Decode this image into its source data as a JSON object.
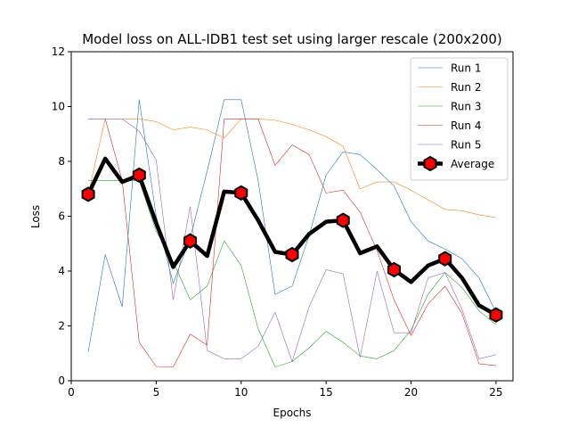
{
  "chart_data": {
    "type": "line",
    "title": "Model loss on ALL-IDB1 test set using larger rescale (200x200)",
    "xlabel": "Epochs",
    "ylabel": "Loss",
    "xlim": [
      0,
      26
    ],
    "ylim": [
      0,
      12
    ],
    "xticks": [
      0,
      5,
      10,
      15,
      20,
      25
    ],
    "yticks": [
      0,
      2,
      4,
      6,
      8,
      10,
      12
    ],
    "grid": false,
    "legend_position": "upper right",
    "x": [
      1,
      2,
      3,
      4,
      5,
      6,
      7,
      8,
      9,
      10,
      11,
      12,
      13,
      14,
      15,
      16,
      17,
      18,
      19,
      20,
      21,
      22,
      23,
      24,
      25
    ],
    "series": [
      {
        "name": "Run 1",
        "color": "#1f77b4",
        "values": [
          1.05,
          4.6,
          2.7,
          10.25,
          6.0,
          3.55,
          5.2,
          7.65,
          10.25,
          10.25,
          7.3,
          3.15,
          3.45,
          5.3,
          7.5,
          8.35,
          8.25,
          7.7,
          7.1,
          5.8,
          5.1,
          4.8,
          4.45,
          3.75,
          2.5
        ]
      },
      {
        "name": "Run 2",
        "color": "#ff7f0e",
        "values": [
          6.8,
          9.55,
          9.55,
          9.55,
          9.45,
          9.15,
          9.25,
          9.15,
          8.85,
          9.55,
          9.55,
          9.5,
          9.35,
          9.15,
          8.9,
          8.55,
          7.0,
          7.25,
          7.25,
          6.95,
          6.6,
          6.25,
          6.2,
          6.05,
          5.95
        ]
      },
      {
        "name": "Run 3",
        "color": "#2ca02c",
        "values": [
          7.3,
          7.3,
          7.3,
          7.3,
          5.45,
          4.35,
          2.95,
          3.45,
          5.1,
          4.2,
          1.9,
          0.5,
          0.7,
          1.2,
          1.8,
          1.4,
          0.9,
          0.8,
          1.1,
          1.85,
          3.15,
          3.95,
          3.4,
          2.55,
          2.05
        ]
      },
      {
        "name": "Run 4",
        "color": "#d62728",
        "values": [
          9.55,
          9.55,
          7.3,
          1.4,
          0.52,
          0.5,
          1.7,
          1.3,
          9.55,
          9.55,
          9.55,
          7.85,
          8.6,
          8.25,
          6.85,
          6.95,
          6.15,
          4.75,
          2.95,
          1.65,
          2.8,
          3.45,
          2.45,
          0.62,
          0.55
        ]
      },
      {
        "name": "Run 5",
        "color": "#9467bd",
        "values": [
          9.55,
          9.55,
          9.55,
          9.1,
          8.05,
          2.95,
          6.35,
          1.1,
          0.8,
          0.8,
          1.25,
          2.5,
          0.7,
          2.7,
          4.05,
          3.9,
          0.85,
          4.0,
          1.75,
          1.75,
          3.75,
          3.95,
          2.6,
          0.8,
          0.95
        ]
      },
      {
        "name": "Average",
        "color": "#000000",
        "marker_color": "#ff0000",
        "values": [
          6.8,
          8.1,
          7.25,
          7.5,
          5.75,
          4.15,
          5.1,
          4.55,
          6.9,
          6.85,
          5.85,
          4.7,
          4.6,
          5.35,
          5.8,
          5.85,
          4.65,
          4.9,
          4.05,
          3.6,
          4.2,
          4.45,
          3.75,
          2.75,
          2.4
        ],
        "marker_at": [
          1,
          4,
          7,
          10,
          13,
          16,
          19,
          22,
          25
        ]
      }
    ]
  }
}
